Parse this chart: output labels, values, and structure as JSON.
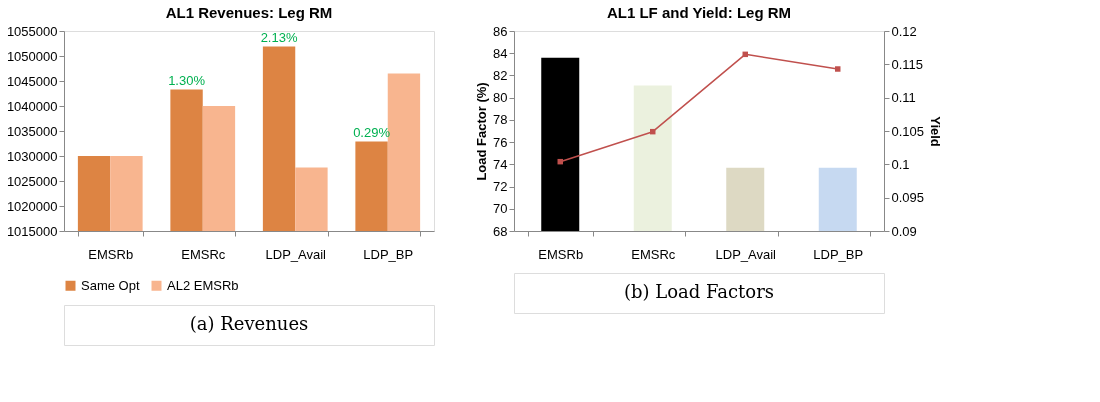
{
  "chart_data": [
    {
      "type": "bar",
      "title": "AL1 Revenues: Leg RM",
      "categories": [
        "EMSRb",
        "EMSRc",
        "LDP_Avail",
        "LDP_BP"
      ],
      "series": [
        {
          "name": "Same Opt",
          "color": "#dd8443",
          "values": [
            1030000,
            1043300,
            1051900,
            1032900
          ]
        },
        {
          "name": "AL2 EMSRb",
          "color": "#f8b58f",
          "values": [
            1030000,
            1040000,
            1027700,
            1046500
          ]
        }
      ],
      "ylim": [
        1015000,
        1055000
      ],
      "yticks": [
        1015000,
        1020000,
        1025000,
        1030000,
        1035000,
        1040000,
        1045000,
        1050000,
        1055000
      ],
      "grid": false,
      "legend": "bottom",
      "annotations": [
        {
          "text": "1.30%",
          "x": "EMSRc",
          "y": 1043300
        },
        {
          "text": "2.13%",
          "x": "LDP_Avail",
          "y": 1051900
        },
        {
          "text": "0.29%",
          "x": "LDP_BP",
          "y": 1032900
        },
        "(a) Revenues"
      ]
    },
    {
      "type": "bar",
      "title": "AL1 LF and Yield: Leg RM",
      "categories": [
        "EMSRb",
        "EMSRc",
        "LDP_Avail",
        "LDP_BP"
      ],
      "ylabel": "Load Factor (%)",
      "y2label": "Yield",
      "series": [
        {
          "type": "bar",
          "colors": [
            "#000000",
            "#ebf1de",
            "#ddd9c3",
            "#c6d9f1"
          ],
          "values": [
            83.6,
            81.1,
            73.7,
            73.7
          ]
        },
        {
          "type": "line",
          "axis": "y2",
          "color": "#c0504d",
          "marker": "square",
          "values": [
            0.1004,
            0.1049,
            0.1165,
            0.1143
          ]
        }
      ],
      "ylim": [
        68,
        86
      ],
      "yticks": [
        68,
        70,
        72,
        74,
        76,
        78,
        80,
        82,
        84,
        86
      ],
      "y2lim": [
        0.09,
        0.12
      ],
      "y2ticks": [
        0.09,
        0.095,
        0.1,
        0.105,
        0.11,
        0.115,
        0.12
      ],
      "grid": false,
      "legend": false,
      "annotations": [
        "(b) Load Factors"
      ]
    }
  ]
}
